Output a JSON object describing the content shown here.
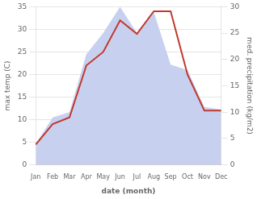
{
  "chart_data": {
    "type": "line",
    "xlabel": "date (month)",
    "ylabel": "max temp (C)",
    "y2label": "med. precipitation (kg/m2)",
    "categories": [
      "Jan",
      "Feb",
      "Mar",
      "Apr",
      "May",
      "Jun",
      "Jul",
      "Aug",
      "Sep",
      "Oct",
      "Nov",
      "Dec"
    ],
    "series": [
      {
        "type": "area",
        "axis": "y2",
        "color": "#c8d0f0",
        "values": [
          4.0,
          9.0,
          10.0,
          21.0,
          25.0,
          30.0,
          25.0,
          29.0,
          19.0,
          18.0,
          11.0,
          10.5
        ]
      },
      {
        "type": "line",
        "color": "#c0392b",
        "values": [
          4.5,
          9.0,
          10.5,
          22.0,
          25.0,
          32.0,
          29.0,
          34.0,
          34.0,
          20.0,
          12.0,
          12.0
        ]
      }
    ],
    "ylim": [
      0,
      35
    ],
    "yticks": [
      0,
      5,
      10,
      15,
      20,
      25,
      30,
      35
    ],
    "y2lim": [
      0,
      30
    ],
    "y2ticks": [
      0,
      5,
      10,
      15,
      20,
      25,
      30
    ],
    "grid": true
  }
}
